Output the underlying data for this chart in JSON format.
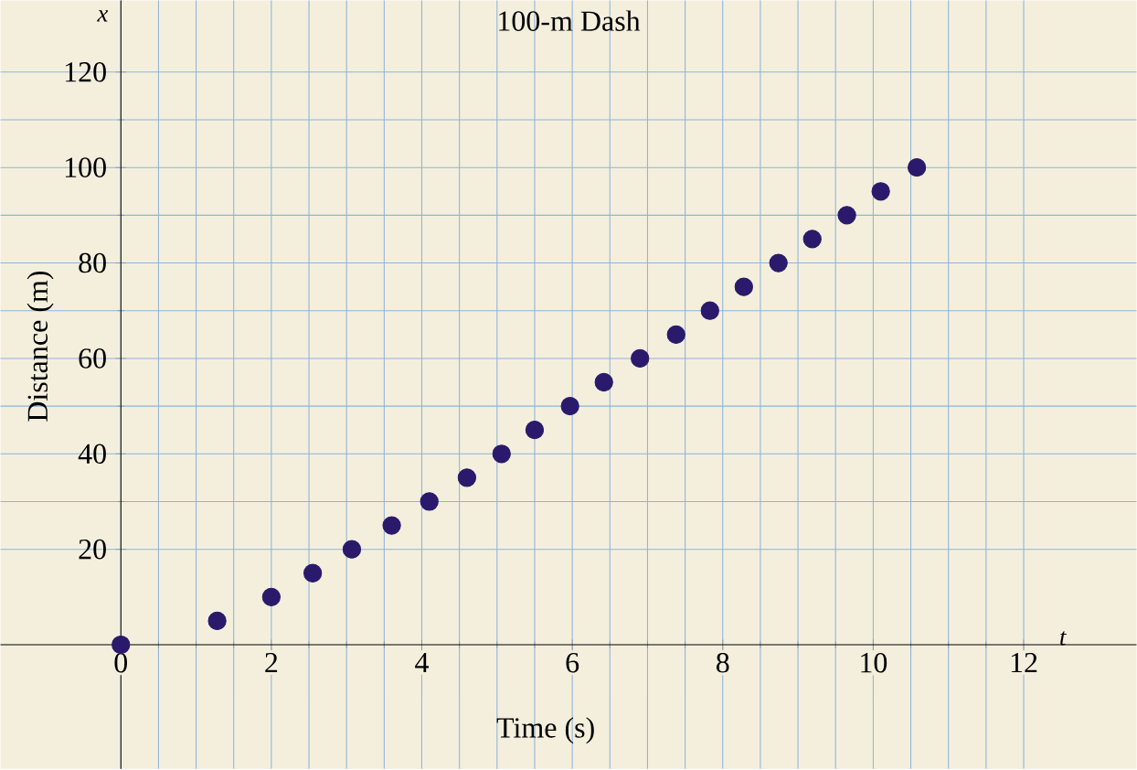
{
  "chart_data": {
    "type": "scatter",
    "title": "100-m Dash",
    "xlabel": "Time (s)",
    "ylabel": "Distance (m)",
    "annotations": [
      "x",
      "t"
    ],
    "x": [
      0,
      1.28,
      2.0,
      2.55,
      3.07,
      3.6,
      4.1,
      4.6,
      5.06,
      5.5,
      5.97,
      6.42,
      6.9,
      7.38,
      7.83,
      8.28,
      8.74,
      9.19,
      9.65,
      10.1,
      10.58
    ],
    "values": [
      0,
      5,
      10,
      15,
      20,
      25,
      30,
      35,
      40,
      45,
      50,
      55,
      60,
      65,
      70,
      75,
      80,
      85,
      90,
      95,
      100
    ],
    "color": "#2b1a6b",
    "marker": "circle",
    "grid": true,
    "xlim": [
      -1.6,
      13.5
    ],
    "ylim": [
      -26,
      135
    ],
    "xticks": [
      0,
      2,
      4,
      6,
      8,
      10,
      12
    ],
    "yticks": [
      20,
      40,
      60,
      80,
      100,
      120
    ]
  }
}
